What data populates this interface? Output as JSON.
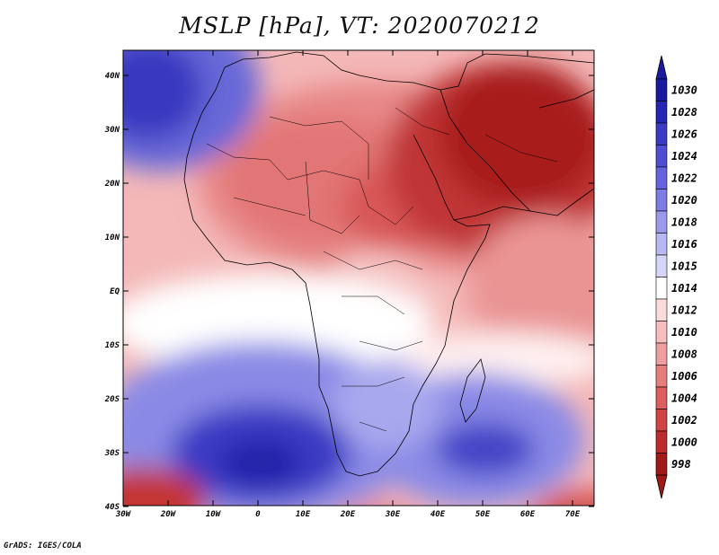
{
  "title": "MSLP [hPa], VT: 2020070212",
  "credit": "GrADS: IGES/COLA",
  "axes": {
    "lon_labels": [
      "30W",
      "20W",
      "10W",
      "0",
      "10E",
      "20E",
      "30E",
      "40E",
      "50E",
      "60E",
      "70E"
    ],
    "lat_labels": [
      "40N",
      "30N",
      "20N",
      "10N",
      "EQ",
      "10S",
      "20S",
      "30S",
      "40S"
    ]
  },
  "colorbar": {
    "levels": [
      "1030",
      "1028",
      "1026",
      "1024",
      "1022",
      "1020",
      "1018",
      "1016",
      "1015",
      "1014",
      "1012",
      "1010",
      "1008",
      "1006",
      "1004",
      "1002",
      "1000",
      "998"
    ],
    "colors": [
      "#1a1aa0",
      "#2626b4",
      "#3a3ac4",
      "#4e4ed0",
      "#6464dc",
      "#7c7ce4",
      "#9a9aec",
      "#b8b8f2",
      "#d6d6f8",
      "#ffffff",
      "#fbdcdc",
      "#f6bebe",
      "#ee9e9e",
      "#e67e7e",
      "#dc5e5e",
      "#d04444",
      "#bc2c2c",
      "#a01818"
    ]
  }
}
